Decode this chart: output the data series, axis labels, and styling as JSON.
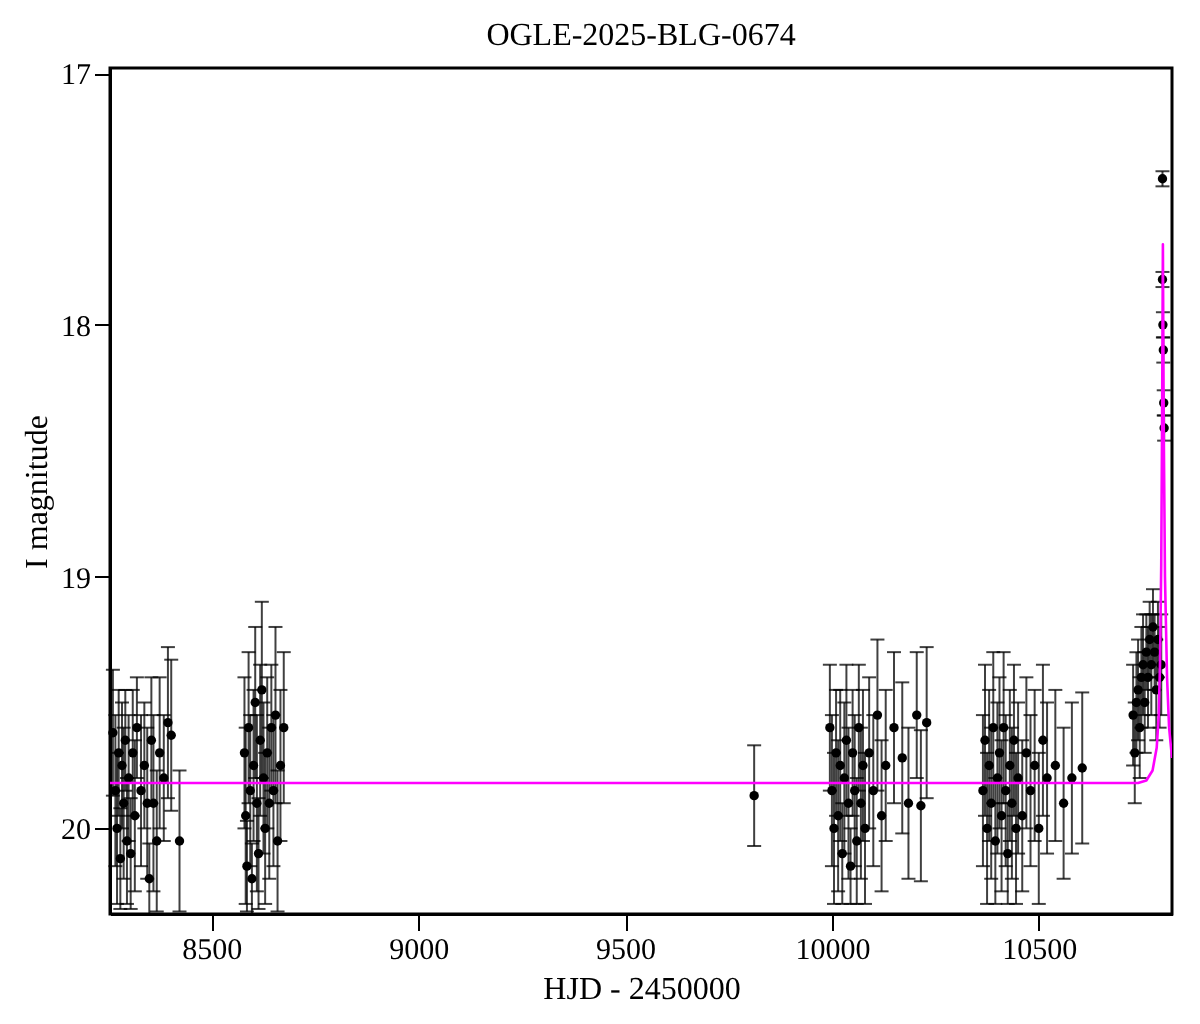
{
  "chart_data": {
    "type": "scatter",
    "title": "OGLE-2025-BLG-0674",
    "xlabel": "HJD - 2450000",
    "ylabel": "I magnitude",
    "xlim": [
      8255,
      10822
    ],
    "ylim": [
      20.34,
      16.98
    ],
    "xticks": [
      8500,
      9000,
      9500,
      10000,
      10500
    ],
    "yticks": [
      17,
      18,
      19,
      20
    ],
    "grid": false,
    "series": [
      {
        "type": "scatter",
        "color": "#000000",
        "marker": "circle",
        "x": [
          8262,
          8268,
          8272,
          8276,
          8280,
          8284,
          8288,
          8292,
          8296,
          8300,
          8305,
          8310,
          8315,
          8320,
          8330,
          8338,
          8345,
          8350,
          8355,
          8360,
          8368,
          8375,
          8385,
          8395,
          8403,
          8423,
          8580,
          8583,
          8586,
          8590,
          8594,
          8598,
          8602,
          8606,
          8610,
          8614,
          8618,
          8622,
          8626,
          8630,
          8635,
          8640,
          8645,
          8650,
          8655,
          8660,
          8667,
          8675,
          9812,
          9995,
          10000,
          10005,
          10010,
          10015,
          10020,
          10025,
          10030,
          10035,
          10040,
          10045,
          10050,
          10055,
          10060,
          10065,
          10070,
          10075,
          10080,
          10090,
          10100,
          10110,
          10120,
          10130,
          10150,
          10170,
          10185,
          10205,
          10215,
          10229,
          10365,
          10370,
          10375,
          10380,
          10385,
          10390,
          10395,
          10400,
          10405,
          10410,
          10415,
          10420,
          10425,
          10430,
          10435,
          10440,
          10445,
          10450,
          10460,
          10470,
          10480,
          10490,
          10500,
          10510,
          10520,
          10540,
          10560,
          10580,
          10605,
          10728,
          10732,
          10736,
          10740,
          10744,
          10748,
          10752,
          10756,
          10760,
          10764,
          10768,
          10772,
          10776,
          10780,
          10784,
          10788,
          10792,
          10796,
          10799,
          10799,
          10800,
          10801,
          10802,
          10803
        ],
        "values": [
          19.62,
          19.85,
          20.0,
          19.7,
          20.12,
          19.75,
          19.9,
          19.65,
          20.05,
          19.8,
          20.1,
          19.7,
          19.95,
          19.6,
          19.85,
          19.75,
          19.9,
          20.2,
          19.65,
          19.9,
          20.05,
          19.7,
          19.8,
          19.58,
          19.63,
          20.05,
          19.7,
          19.95,
          20.15,
          19.6,
          19.85,
          20.2,
          19.75,
          19.5,
          19.9,
          20.1,
          19.65,
          19.45,
          19.8,
          20.0,
          19.7,
          19.9,
          19.6,
          19.85,
          19.55,
          20.05,
          19.75,
          19.6,
          19.87,
          19.6,
          19.85,
          20.0,
          19.7,
          19.95,
          19.75,
          20.1,
          19.8,
          19.65,
          19.9,
          20.15,
          19.7,
          19.85,
          20.05,
          19.6,
          19.9,
          19.75,
          20.0,
          19.7,
          19.85,
          19.55,
          19.95,
          19.75,
          19.6,
          19.72,
          19.9,
          19.55,
          19.91,
          19.58,
          19.85,
          19.65,
          20.0,
          19.75,
          19.9,
          19.6,
          20.05,
          19.8,
          19.7,
          19.95,
          19.6,
          19.85,
          20.1,
          19.75,
          19.9,
          19.65,
          20.0,
          19.8,
          19.95,
          19.7,
          19.85,
          19.75,
          20.0,
          19.65,
          19.8,
          19.75,
          19.9,
          19.8,
          19.76,
          19.55,
          19.7,
          19.5,
          19.45,
          19.6,
          19.4,
          19.35,
          19.5,
          19.3,
          19.4,
          19.25,
          19.35,
          19.2,
          19.3,
          19.45,
          19.25,
          19.4,
          19.35,
          17.42,
          17.82,
          18.0,
          18.1,
          18.31,
          18.41
        ],
        "errors": [
          0.25,
          0.3,
          0.3,
          0.25,
          0.2,
          0.25,
          0.3,
          0.2,
          0.25,
          0.25,
          0.22,
          0.25,
          0.3,
          0.2,
          0.3,
          0.25,
          0.3,
          0.14,
          0.25,
          0.35,
          0.28,
          0.3,
          0.25,
          0.3,
          0.3,
          0.28,
          0.3,
          0.35,
          0.18,
          0.3,
          0.3,
          0.14,
          0.3,
          0.3,
          0.35,
          0.22,
          0.3,
          0.35,
          0.3,
          0.3,
          0.3,
          0.3,
          0.25,
          0.3,
          0.35,
          0.28,
          0.3,
          0.3,
          0.2,
          0.25,
          0.3,
          0.3,
          0.25,
          0.3,
          0.3,
          0.2,
          0.3,
          0.3,
          0.3,
          0.15,
          0.25,
          0.3,
          0.25,
          0.25,
          0.3,
          0.3,
          0.3,
          0.3,
          0.3,
          0.3,
          0.3,
          0.3,
          0.3,
          0.3,
          0.3,
          0.25,
          0.3,
          0.3,
          0.3,
          0.3,
          0.3,
          0.3,
          0.3,
          0.3,
          0.25,
          0.3,
          0.3,
          0.3,
          0.3,
          0.3,
          0.2,
          0.3,
          0.3,
          0.3,
          0.3,
          0.3,
          0.3,
          0.3,
          0.3,
          0.3,
          0.3,
          0.3,
          0.3,
          0.3,
          0.3,
          0.3,
          0.3,
          0.2,
          0.2,
          0.2,
          0.2,
          0.2,
          0.2,
          0.2,
          0.2,
          0.15,
          0.2,
          0.15,
          0.2,
          0.15,
          0.15,
          0.2,
          0.15,
          0.2,
          0.2,
          0.03,
          0.03,
          0.05,
          0.05,
          0.05,
          0.05
        ]
      },
      {
        "type": "line",
        "color": "#ff00ff",
        "marker": "none",
        "x": [
          8255,
          10740,
          10760,
          10775,
          10785,
          10790,
          10793,
          10796,
          10798,
          10800,
          10802,
          10805,
          10810,
          10815,
          10822
        ],
        "values": [
          19.82,
          19.82,
          19.81,
          19.77,
          19.68,
          19.55,
          19.35,
          18.95,
          18.4,
          17.68,
          18.4,
          19.0,
          19.4,
          19.6,
          19.72
        ]
      }
    ]
  }
}
